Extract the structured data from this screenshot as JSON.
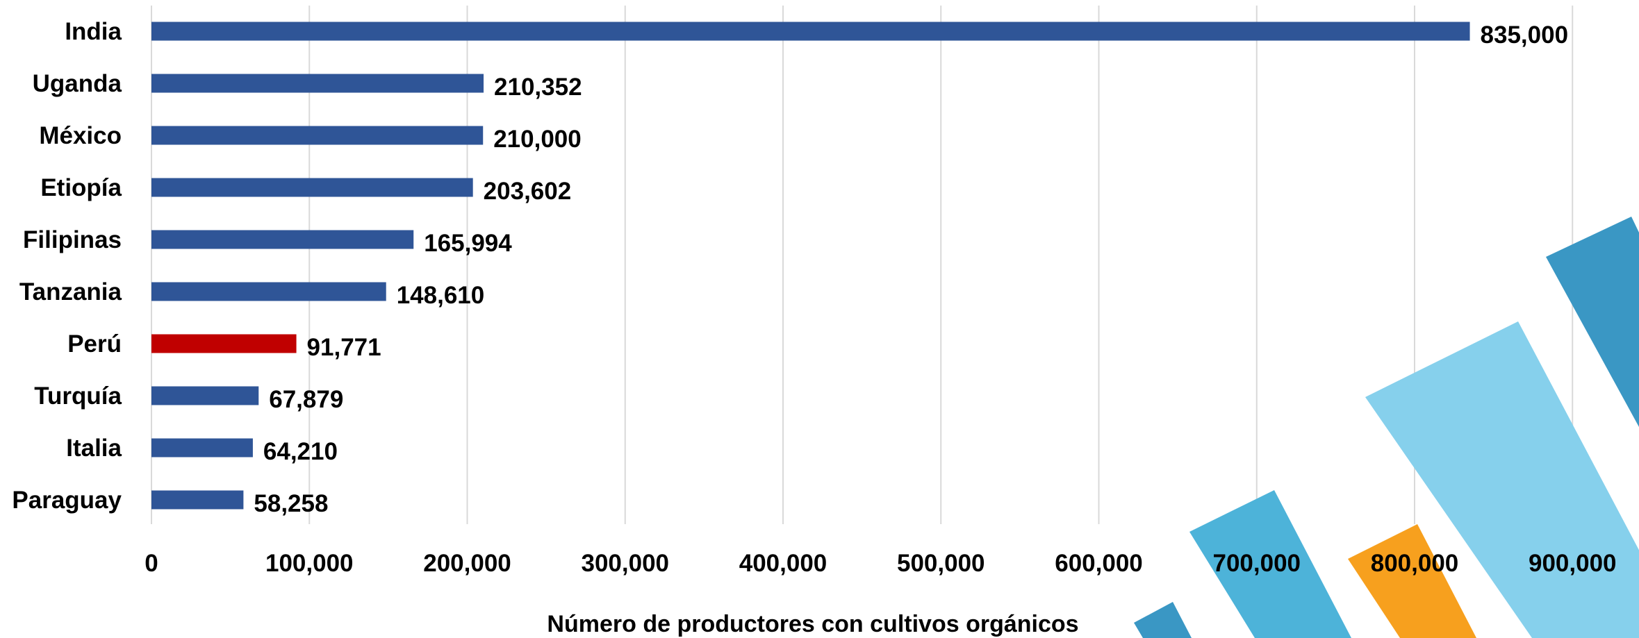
{
  "chart_data": {
    "type": "bar",
    "orientation": "horizontal",
    "categories": [
      "India",
      "Uganda",
      "México",
      "Etiopía",
      "Filipinas",
      "Tanzania",
      "Perú",
      "Turquía",
      "Italia",
      "Paraguay"
    ],
    "values": [
      835000,
      210352,
      210000,
      203602,
      165994,
      148610,
      91771,
      67879,
      64210,
      58258
    ],
    "value_labels": [
      "835,000",
      "210,352",
      "210,000",
      "203,602",
      "165,994",
      "148,610",
      "91,771",
      "67,879",
      "64,210",
      "58,258"
    ],
    "highlight_category": "Perú",
    "xlabel": "Número de productores con cultivos orgánicos",
    "ylabel": "",
    "xlim": [
      0,
      900000
    ],
    "xticks": [
      0,
      100000,
      200000,
      300000,
      400000,
      500000,
      600000,
      700000,
      800000,
      900000
    ],
    "xtick_labels": [
      "0",
      "100,000",
      "200,000",
      "300,000",
      "400,000",
      "500,000",
      "600,000",
      "700,000",
      "800,000",
      "900,000"
    ],
    "grid": "vertical",
    "legend": "none"
  },
  "colors": {
    "bar": "#2f5597",
    "highlight": "#c00000",
    "grid": "#d9d9d9",
    "deco_dark_blue": "#3a97c4",
    "deco_mid_blue": "#4db3d9",
    "deco_light_blue": "#86d0ec",
    "deco_orange": "#f7a01e"
  }
}
